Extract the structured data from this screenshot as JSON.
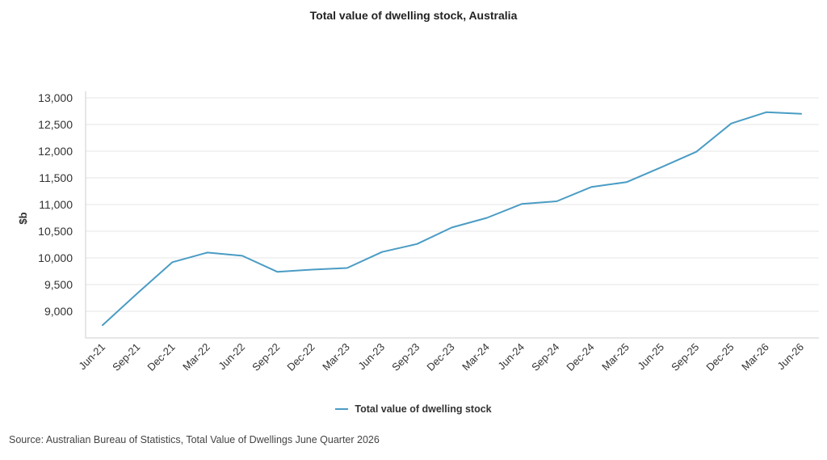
{
  "chart_data": {
    "type": "line",
    "title": "Total value of dwelling stock, Australia",
    "xlabel": "",
    "ylabel": "$b",
    "ylim": [
      8500,
      13000
    ],
    "yticks": [
      9000,
      9500,
      10000,
      10500,
      11000,
      11500,
      12000,
      12500,
      13000
    ],
    "ytick_labels": [
      "9,000",
      "9,500",
      "10,000",
      "10,500",
      "11,000",
      "11,500",
      "12,000",
      "12,500",
      "13,000"
    ],
    "grid": true,
    "legend_position": "bottom",
    "categories": [
      "Jun-21",
      "Sep-21",
      "Dec-21",
      "Mar-22",
      "Jun-22",
      "Sep-22",
      "Dec-22",
      "Mar-23",
      "Jun-23",
      "Sep-23",
      "Dec-23",
      "Mar-24",
      "Jun-24",
      "Sep-24",
      "Dec-24",
      "Mar-25",
      "Jun-25",
      "Sep-25",
      "Dec-25",
      "Mar-26",
      "Jun-26"
    ],
    "series": [
      {
        "name": "Total value of dwelling stock",
        "color": "#4a9cc4",
        "values": [
          8740,
          9340,
          9920,
          10100,
          10040,
          9740,
          9780,
          9810,
          10110,
          10260,
          10570,
          10750,
          11010,
          11060,
          11330,
          11420,
          11700,
          11990,
          12520,
          12730,
          12700
        ]
      }
    ]
  },
  "source_note": "Source: Australian Bureau of Statistics, Total Value of Dwellings June Quarter 2026"
}
